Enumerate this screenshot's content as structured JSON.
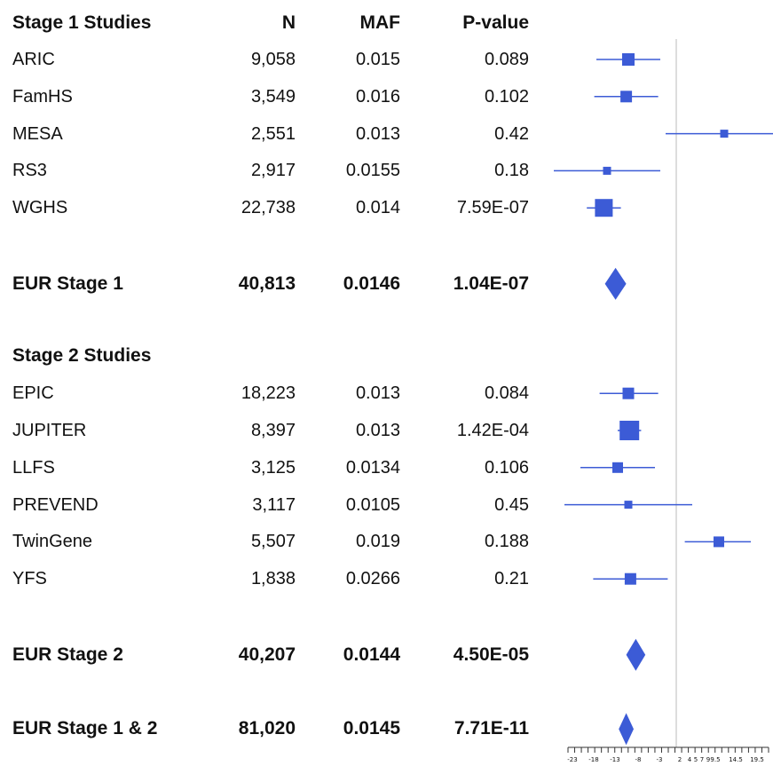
{
  "chart_data": {
    "type": "forest",
    "headers": {
      "study": "Stage 1 Studies",
      "n": "N",
      "maf": "MAF",
      "pvalue": "P-value"
    },
    "x_axis": {
      "ticks": [
        -23,
        -18,
        -13,
        -8,
        -3,
        2,
        4,
        5,
        7,
        9,
        9.5,
        14.5,
        19.5
      ],
      "tick_labels": [
        "-23",
        "-18",
        "-13",
        "-8",
        "-3",
        "2",
        "4",
        "5",
        "7",
        "9",
        "9.5",
        "14.5",
        "19.5"
      ],
      "null_line": 0
    },
    "rows": [
      {
        "kind": "study",
        "name": "ARIC",
        "n": "9,058",
        "maf": "0.015",
        "pvalue": "0.089",
        "est": -4.5,
        "lo": -7.5,
        "hi": -1.5,
        "w": 14
      },
      {
        "kind": "study",
        "name": "FamHS",
        "n": "3,549",
        "maf": "0.016",
        "pvalue": "0.102",
        "est": -4.7,
        "lo": -7.7,
        "hi": -1.7,
        "w": 13
      },
      {
        "kind": "study",
        "name": "MESA",
        "n": "2,551",
        "maf": "0.013",
        "pvalue": "0.42",
        "est": 4.5,
        "lo": -1.0,
        "hi": 10.0,
        "w": 9
      },
      {
        "kind": "study",
        "name": "RS3",
        "n": "2,917",
        "maf": "0.0155",
        "pvalue": "0.18",
        "est": -6.5,
        "lo": -11.5,
        "hi": -1.5,
        "w": 9
      },
      {
        "kind": "study",
        "name": "WGHS",
        "n": "22,738",
        "maf": "0.014",
        "pvalue": "7.59E-07",
        "est": -6.8,
        "lo": -8.4,
        "hi": -5.2,
        "w": 20
      },
      {
        "kind": "spacer"
      },
      {
        "kind": "summary",
        "name": "EUR Stage 1",
        "n": "40,813",
        "maf": "0.0146",
        "pvalue": "1.04E-07",
        "est": -5.7,
        "lo": -6.7,
        "hi": -4.7
      },
      {
        "kind": "spacer"
      },
      {
        "kind": "heading",
        "name": "Stage 2 Studies"
      },
      {
        "kind": "study",
        "name": "EPIC",
        "n": "18,223",
        "maf": "0.013",
        "pvalue": "0.084",
        "est": -4.5,
        "lo": -7.2,
        "hi": -1.7,
        "w": 13
      },
      {
        "kind": "study",
        "name": "JUPITER",
        "n": "8,397",
        "maf": "0.013",
        "pvalue": "1.42E-04",
        "est": -4.4,
        "lo": -5.5,
        "hi": -3.3,
        "w": 22
      },
      {
        "kind": "study",
        "name": "LLFS",
        "n": "3,125",
        "maf": "0.0134",
        "pvalue": "0.106",
        "est": -5.5,
        "lo": -9.0,
        "hi": -2.0,
        "w": 12
      },
      {
        "kind": "study",
        "name": "PREVEND",
        "n": "3,117",
        "maf": "0.0105",
        "pvalue": "0.45",
        "est": -4.5,
        "lo": -10.5,
        "hi": 1.5,
        "w": 9
      },
      {
        "kind": "study",
        "name": "TwinGene",
        "n": "5,507",
        "maf": "0.019",
        "pvalue": "0.188",
        "est": 4.0,
        "lo": 0.8,
        "hi": 7.0,
        "w": 12
      },
      {
        "kind": "study",
        "name": "YFS",
        "n": "1,838",
        "maf": "0.0266",
        "pvalue": "0.21",
        "est": -4.3,
        "lo": -7.8,
        "hi": -0.8,
        "w": 13
      },
      {
        "kind": "spacer"
      },
      {
        "kind": "summary",
        "name": "EUR Stage 2",
        "n": "40,207",
        "maf": "0.0144",
        "pvalue": "4.50E-05",
        "est": -3.8,
        "lo": -4.7,
        "hi": -2.9
      },
      {
        "kind": "spacer"
      },
      {
        "kind": "summary",
        "name": "EUR Stage 1 & 2",
        "n": "81,020",
        "maf": "0.0145",
        "pvalue": "7.71E-11",
        "est": -4.7,
        "lo": -5.4,
        "hi": -4.0
      }
    ],
    "colors": {
      "marker": "#3c5bd6",
      "line": "#3c5bd6",
      "null_line": "#bbbbbb",
      "axis": "#333333"
    }
  }
}
